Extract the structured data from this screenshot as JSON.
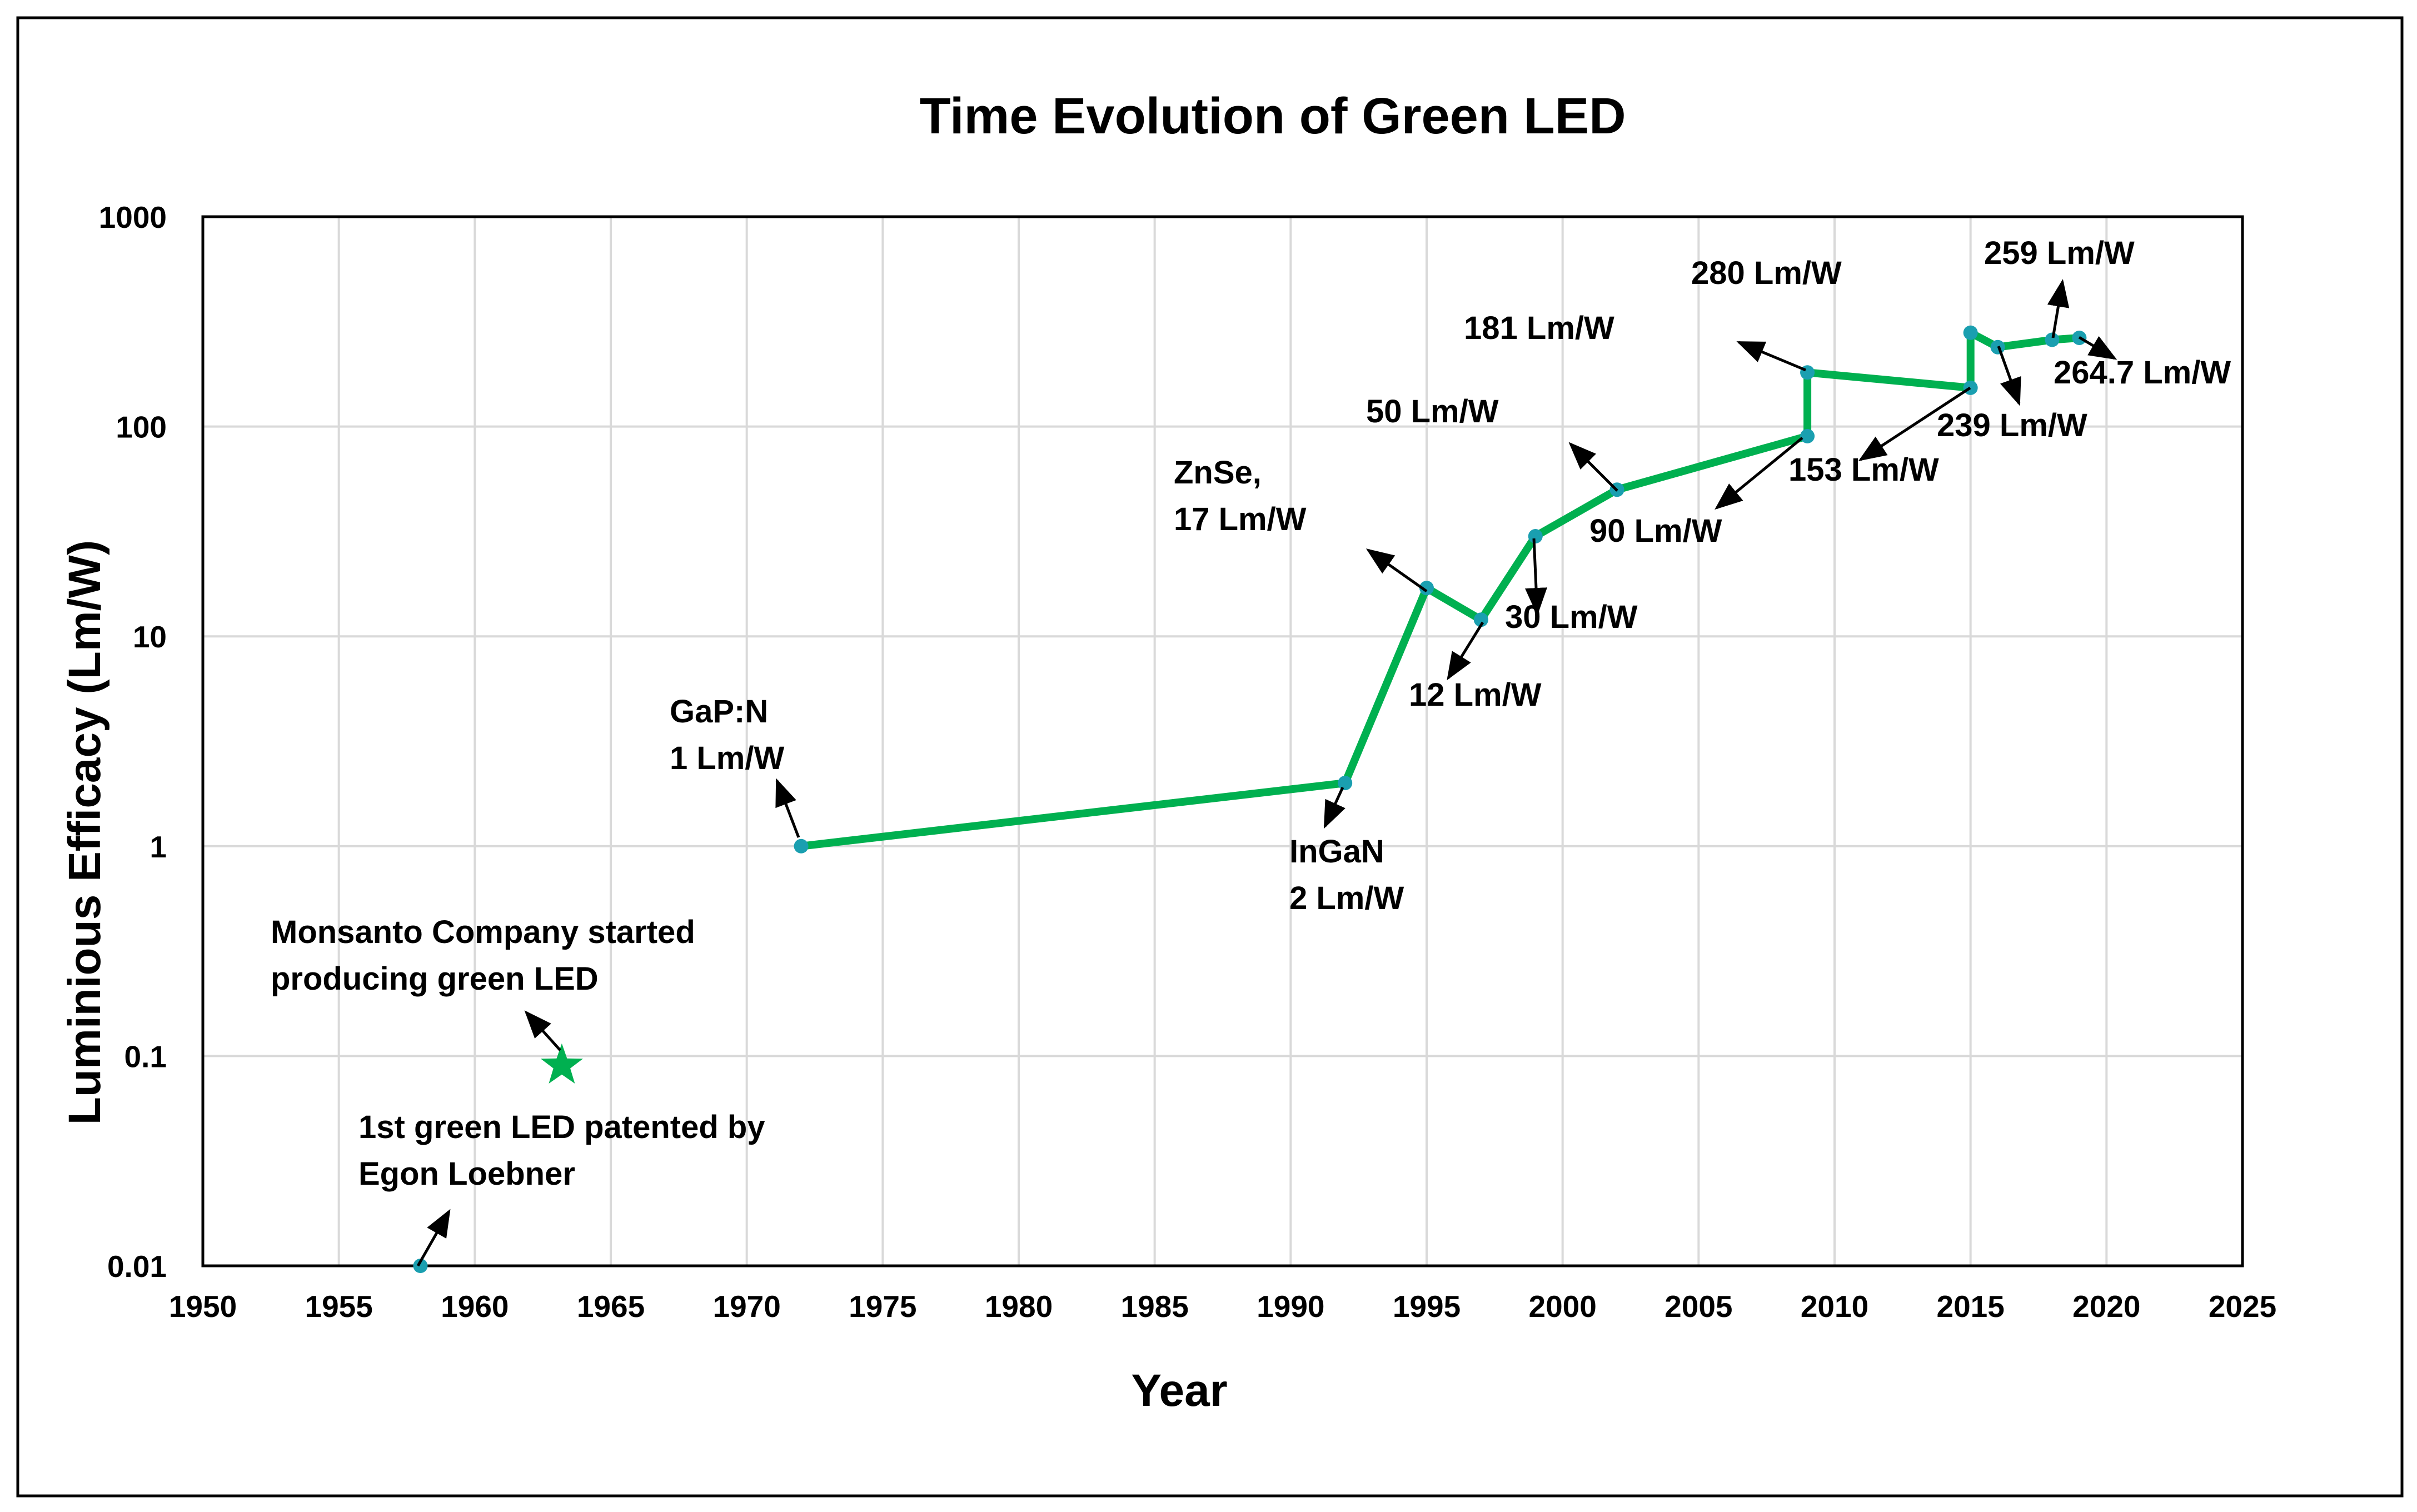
{
  "chart_data": {
    "type": "line",
    "title": "Time Evolution of Green LED",
    "xlabel": "Year",
    "ylabel": "Luminious Efficacy (Lm/W)",
    "xlim": [
      1950,
      2025
    ],
    "ylim": [
      0.01,
      1000
    ],
    "y_scale": "log",
    "grid": true,
    "legend": "none",
    "x_ticks": [
      "1950",
      "1955",
      "1960",
      "1965",
      "1970",
      "1975",
      "1980",
      "1985",
      "1990",
      "1995",
      "2000",
      "2005",
      "2010",
      "2015",
      "2020",
      "2025"
    ],
    "y_ticks": [
      "0.01",
      "0.1",
      "1",
      "10",
      "100",
      "1000"
    ],
    "colors": {
      "line": "#00b050",
      "marker": "#1a9fb0",
      "star": "#00b050",
      "grid": "#d9d9d9",
      "frame": "#000000"
    },
    "series": [
      {
        "x": [
          1972,
          1992,
          1995,
          1997,
          1999,
          2002,
          2009,
          2009,
          2015,
          2015,
          2016,
          2018,
          2019
        ],
        "y": [
          1,
          2,
          17,
          12,
          30,
          50,
          90,
          181,
          153,
          280,
          239,
          259,
          264.7
        ]
      }
    ],
    "extra_points": [
      {
        "x": 1958,
        "y": 0.01,
        "marker": "circle"
      },
      {
        "x": 1963.2,
        "y": 0.09,
        "marker": "star"
      }
    ],
    "annotations": [
      {
        "lines": [
          "1st green LED patented  by",
          "Egon Loebner"
        ]
      },
      {
        "lines": [
          "Monsanto Company started",
          "producing green LED"
        ]
      },
      {
        "lines": [
          "GaP:N",
          "1 Lm/W"
        ]
      },
      {
        "lines": [
          "InGaN",
          "2 Lm/W"
        ]
      },
      {
        "lines": [
          "ZnSe,",
          "17  Lm/W"
        ]
      },
      {
        "lines": [
          "12 Lm/W"
        ]
      },
      {
        "lines": [
          "30 Lm/W"
        ]
      },
      {
        "lines": [
          "50 Lm/W"
        ]
      },
      {
        "lines": [
          "90 Lm/W"
        ]
      },
      {
        "lines": [
          "181 Lm/W"
        ]
      },
      {
        "lines": [
          "153 Lm/W"
        ]
      },
      {
        "lines": [
          "280 Lm/W"
        ]
      },
      {
        "lines": [
          "239 Lm/W"
        ]
      },
      {
        "lines": [
          "259 Lm/W"
        ]
      },
      {
        "lines": [
          "264.7 Lm/W"
        ]
      }
    ]
  }
}
